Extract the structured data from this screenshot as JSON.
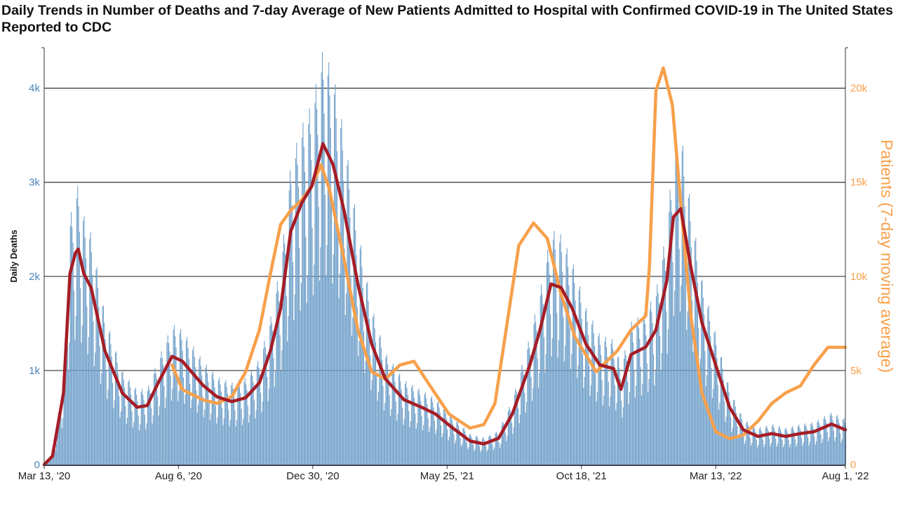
{
  "chart_data": {
    "type": "bar+line",
    "title": "Daily Trends in Number of Deaths and 7-day Average of New Patients Admitted to Hospital with Confirmed COVID-19 in The United States Reported to CDC",
    "ylabel_left": "Daily Deaths",
    "ylabel_right": "Patients (7-day moving average)",
    "xlim": [
      "2020-03-13",
      "2022-08-01"
    ],
    "ylim_left": [
      0,
      4430
    ],
    "ylim_right": [
      0,
      22150
    ],
    "grid": true,
    "x_ticks": [
      {
        "date": "2020-03-13",
        "label": "Mar 13, '20"
      },
      {
        "date": "2020-08-06",
        "label": "Aug 6, '20"
      },
      {
        "date": "2020-12-30",
        "label": "Dec 30, '20"
      },
      {
        "date": "2021-05-25",
        "label": "May 25, '21"
      },
      {
        "date": "2021-10-18",
        "label": "Oct 18, '21"
      },
      {
        "date": "2022-03-13",
        "label": "Mar 13, '22"
      },
      {
        "date": "2022-08-01",
        "label": "Aug 1, '22"
      }
    ],
    "y_ticks_left": [
      {
        "v": 0,
        "label": "0"
      },
      {
        "v": 1000,
        "label": "1k"
      },
      {
        "v": 2000,
        "label": "2k"
      },
      {
        "v": 3000,
        "label": "3k"
      },
      {
        "v": 4000,
        "label": "4k"
      }
    ],
    "y_ticks_right": [
      {
        "v": 0,
        "label": "0"
      },
      {
        "v": 5000,
        "label": "5k"
      },
      {
        "v": 10000,
        "label": "10k"
      },
      {
        "v": 15000,
        "label": "15k"
      },
      {
        "v": 20000,
        "label": "20k"
      }
    ],
    "colors": {
      "bars": "#6f9fc9",
      "deaths_avg": "#a51d26",
      "patients": "#f7a04b",
      "left_axis": "#4a86b8",
      "right_axis": "#f7a04b"
    },
    "series": [
      {
        "type": "bar",
        "axis": "left",
        "desc_key": "daily_deaths",
        "weekly_variation": true
      },
      {
        "type": "line",
        "axis": "left",
        "key": "deaths_avg",
        "points": [
          [
            "2020-03-13",
            0
          ],
          [
            "2020-03-22",
            90
          ],
          [
            "2020-04-03",
            760
          ],
          [
            "2020-04-10",
            2030
          ],
          [
            "2020-04-16",
            2250
          ],
          [
            "2020-04-19",
            2290
          ],
          [
            "2020-04-25",
            2030
          ],
          [
            "2020-05-03",
            1880
          ],
          [
            "2020-05-18",
            1210
          ],
          [
            "2020-06-06",
            760
          ],
          [
            "2020-06-22",
            610
          ],
          [
            "2020-07-03",
            627
          ],
          [
            "2020-07-15",
            870
          ],
          [
            "2020-07-30",
            1150
          ],
          [
            "2020-08-10",
            1100
          ],
          [
            "2020-09-02",
            840
          ],
          [
            "2020-09-17",
            720
          ],
          [
            "2020-10-03",
            670
          ],
          [
            "2020-10-18",
            710
          ],
          [
            "2020-11-02",
            870
          ],
          [
            "2020-11-14",
            1210
          ],
          [
            "2020-11-25",
            1660
          ],
          [
            "2020-12-06",
            2480
          ],
          [
            "2020-12-18",
            2780
          ],
          [
            "2020-12-29",
            2960
          ],
          [
            "2021-01-10",
            3410
          ],
          [
            "2021-01-21",
            3190
          ],
          [
            "2021-02-02",
            2700
          ],
          [
            "2021-02-17",
            1920
          ],
          [
            "2021-03-04",
            1280
          ],
          [
            "2021-03-19",
            910
          ],
          [
            "2021-04-08",
            690
          ],
          [
            "2021-04-27",
            610
          ],
          [
            "2021-05-12",
            540
          ],
          [
            "2021-05-31",
            390
          ],
          [
            "2021-06-19",
            250
          ],
          [
            "2021-07-04",
            220
          ],
          [
            "2021-07-20",
            280
          ],
          [
            "2021-08-04",
            540
          ],
          [
            "2021-08-23",
            1060
          ],
          [
            "2021-09-03",
            1430
          ],
          [
            "2021-09-15",
            1920
          ],
          [
            "2021-09-26",
            1880
          ],
          [
            "2021-10-08",
            1660
          ],
          [
            "2021-10-23",
            1280
          ],
          [
            "2021-11-07",
            1060
          ],
          [
            "2021-11-22",
            1020
          ],
          [
            "2021-11-30",
            800
          ],
          [
            "2021-12-11",
            1170
          ],
          [
            "2021-12-27",
            1250
          ],
          [
            "2022-01-07",
            1430
          ],
          [
            "2022-01-19",
            1960
          ],
          [
            "2022-01-26",
            2630
          ],
          [
            "2022-02-03",
            2720
          ],
          [
            "2022-02-14",
            2100
          ],
          [
            "2022-02-26",
            1510
          ],
          [
            "2022-03-13",
            1060
          ],
          [
            "2022-03-28",
            610
          ],
          [
            "2022-04-12",
            370
          ],
          [
            "2022-04-28",
            300
          ],
          [
            "2022-05-13",
            330
          ],
          [
            "2022-05-28",
            300
          ],
          [
            "2022-06-13",
            330
          ],
          [
            "2022-06-28",
            350
          ],
          [
            "2022-07-17",
            430
          ],
          [
            "2022-08-01",
            370
          ]
        ]
      },
      {
        "type": "line",
        "axis": "right",
        "key": "patients",
        "name": "Patients (7-day moving average)",
        "points": [
          [
            "2020-07-30",
            5300
          ],
          [
            "2020-08-10",
            3990
          ],
          [
            "2020-09-02",
            3430
          ],
          [
            "2020-09-17",
            3250
          ],
          [
            "2020-10-03",
            3620
          ],
          [
            "2020-10-18",
            4930
          ],
          [
            "2020-11-02",
            7160
          ],
          [
            "2020-11-14",
            10150
          ],
          [
            "2020-11-25",
            12760
          ],
          [
            "2020-12-06",
            13510
          ],
          [
            "2020-12-18",
            14070
          ],
          [
            "2020-12-29",
            14810
          ],
          [
            "2021-01-08",
            15930
          ],
          [
            "2021-01-17",
            14630
          ],
          [
            "2021-02-02",
            10900
          ],
          [
            "2021-02-17",
            7160
          ],
          [
            "2021-03-04",
            4930
          ],
          [
            "2021-03-19",
            4550
          ],
          [
            "2021-04-04",
            5300
          ],
          [
            "2021-04-19",
            5490
          ],
          [
            "2021-05-04",
            4370
          ],
          [
            "2021-05-27",
            2690
          ],
          [
            "2021-06-19",
            1940
          ],
          [
            "2021-07-04",
            2130
          ],
          [
            "2021-07-16",
            3250
          ],
          [
            "2021-07-27",
            6790
          ],
          [
            "2021-08-11",
            11640
          ],
          [
            "2021-08-27",
            12840
          ],
          [
            "2021-09-11",
            12010
          ],
          [
            "2021-09-26",
            9030
          ],
          [
            "2021-10-11",
            6790
          ],
          [
            "2021-11-03",
            4930
          ],
          [
            "2021-11-26",
            6040
          ],
          [
            "2021-12-11",
            7160
          ],
          [
            "2021-12-27",
            7910
          ],
          [
            "2021-12-31",
            10520
          ],
          [
            "2022-01-07",
            19850
          ],
          [
            "2022-01-15",
            21080
          ],
          [
            "2022-01-25",
            19100
          ],
          [
            "2022-02-03",
            13880
          ],
          [
            "2022-02-14",
            7910
          ],
          [
            "2022-02-26",
            3810
          ],
          [
            "2022-03-13",
            1750
          ],
          [
            "2022-03-28",
            1380
          ],
          [
            "2022-04-12",
            1570
          ],
          [
            "2022-04-28",
            2310
          ],
          [
            "2022-05-13",
            3250
          ],
          [
            "2022-05-28",
            3810
          ],
          [
            "2022-06-13",
            4180
          ],
          [
            "2022-06-28",
            5300
          ],
          [
            "2022-07-13",
            6230
          ],
          [
            "2022-08-01",
            6230
          ]
        ]
      }
    ]
  }
}
